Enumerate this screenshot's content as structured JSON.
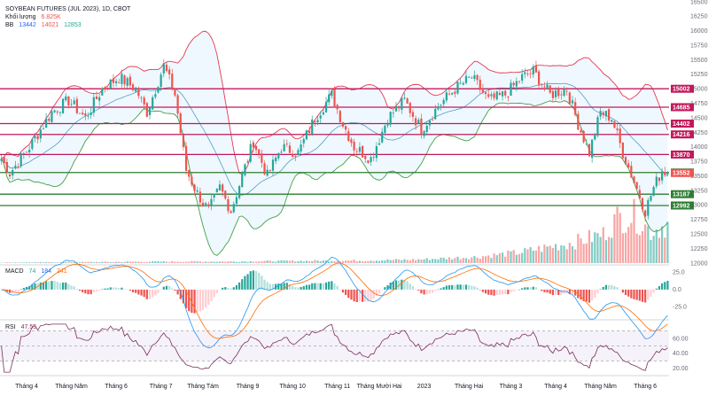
{
  "header": {
    "title": "SOYBEAN FUTURES (JUL 2023), 1D, CBOT",
    "volume_label": "Khối lượng",
    "volume_value": "6.825K",
    "bb_label": "BB",
    "bb_basis": "13442",
    "bb_upper": "14021",
    "bb_lower": "12853"
  },
  "indicators": {
    "macd_label": "MACD",
    "macd_values": [
      "74",
      "184",
      "241"
    ],
    "rsi_label": "RSI",
    "rsi_value": "47.55"
  },
  "colors": {
    "up": "#26a69a",
    "down": "#ef5350",
    "resistance": "#c2185b",
    "support": "#2e7d32",
    "bb_upper": "#e53950",
    "bb_lower": "#43a047",
    "bb_basis": "#4ea0c8",
    "rsi_line": "#7b2d5a",
    "macd_line": "#2196f3",
    "signal_line": "#ff6d00"
  },
  "chart_data": {
    "type": "candlestick",
    "symbol": "SOYBEAN FUTURES (JUL 2023), 1D, CBOT",
    "price_axis_ticks": [
      "16500",
      "16250",
      "16000",
      "15750",
      "15500",
      "15250",
      "15000",
      "14750",
      "14500",
      "14250",
      "14000",
      "13750",
      "13500",
      "13250",
      "13000",
      "12750",
      "12500",
      "12250",
      "12000"
    ],
    "price_range": [
      12000,
      16500
    ],
    "time_axis_labels": [
      "Tháng 4",
      "Tháng Năm",
      "Tháng 6",
      "Tháng 7",
      "Tháng Tám",
      "Tháng 9",
      "Tháng 10",
      "Tháng 11",
      "Tháng Mười Hai",
      "2023",
      "Tháng Hai",
      "Tháng 3",
      "Tháng 4",
      "Tháng Năm",
      "Tháng 6"
    ],
    "horizontal_levels": [
      {
        "value": 15002,
        "label": "15002",
        "kind": "resistance"
      },
      {
        "value": 14685,
        "label": "14685",
        "kind": "resistance"
      },
      {
        "value": 14402,
        "label": "14402",
        "kind": "resistance"
      },
      {
        "value": 14216,
        "label": "14216",
        "kind": "resistance"
      },
      {
        "value": 13870,
        "label": "13870",
        "kind": "resistance"
      },
      {
        "value": 13560,
        "label": "13560",
        "kind": "support"
      },
      {
        "value": 13187,
        "label": "13187",
        "kind": "support"
      },
      {
        "value": 12992,
        "label": "12992",
        "kind": "support"
      }
    ],
    "last_price": {
      "value": 13552,
      "label": "13552"
    },
    "price_path": [
      [
        0,
        13800
      ],
      [
        3,
        13550
      ],
      [
        10,
        14000
      ],
      [
        18,
        14600
      ],
      [
        24,
        14800
      ],
      [
        30,
        14500
      ],
      [
        36,
        15000
      ],
      [
        42,
        15200
      ],
      [
        48,
        15000
      ],
      [
        52,
        14600
      ],
      [
        58,
        15400
      ],
      [
        62,
        14900
      ],
      [
        66,
        13600
      ],
      [
        70,
        13200
      ],
      [
        74,
        12900
      ],
      [
        78,
        13300
      ],
      [
        82,
        12900
      ],
      [
        86,
        13500
      ],
      [
        90,
        14100
      ],
      [
        95,
        13500
      ],
      [
        100,
        14000
      ],
      [
        106,
        13900
      ],
      [
        112,
        14500
      ],
      [
        118,
        14900
      ],
      [
        122,
        14400
      ],
      [
        126,
        14000
      ],
      [
        132,
        13800
      ],
      [
        138,
        14500
      ],
      [
        144,
        14800
      ],
      [
        150,
        14300
      ],
      [
        156,
        14700
      ],
      [
        162,
        15000
      ],
      [
        168,
        15200
      ],
      [
        174,
        14800
      ],
      [
        180,
        14900
      ],
      [
        186,
        15200
      ],
      [
        190,
        15300
      ],
      [
        196,
        14900
      ],
      [
        202,
        15000
      ],
      [
        206,
        14400
      ],
      [
        210,
        13900
      ],
      [
        214,
        14600
      ],
      [
        218,
        14500
      ],
      [
        222,
        13900
      ],
      [
        226,
        13400
      ],
      [
        230,
        12900
      ],
      [
        233,
        13300
      ],
      [
        236,
        13600
      ],
      [
        238,
        13550
      ]
    ],
    "volume_profile": [
      [
        0,
        0.01
      ],
      [
        30,
        0.02
      ],
      [
        60,
        0.03
      ],
      [
        80,
        0.03
      ],
      [
        100,
        0.04
      ],
      [
        130,
        0.05
      ],
      [
        150,
        0.07
      ],
      [
        170,
        0.12
      ],
      [
        185,
        0.2
      ],
      [
        195,
        0.3
      ],
      [
        205,
        0.4
      ],
      [
        215,
        0.55
      ],
      [
        220,
        0.85
      ],
      [
        226,
        0.9
      ],
      [
        232,
        0.6
      ],
      [
        238,
        0.75
      ]
    ],
    "macd": {
      "axis_ticks": [
        "25.0",
        "0.0",
        "-25.0"
      ],
      "range": [
        -40,
        32
      ]
    },
    "rsi": {
      "axis_ticks": [
        "60.00",
        "40.00",
        "20.00"
      ],
      "range": [
        14,
        80
      ],
      "band": [
        30,
        70
      ]
    }
  }
}
